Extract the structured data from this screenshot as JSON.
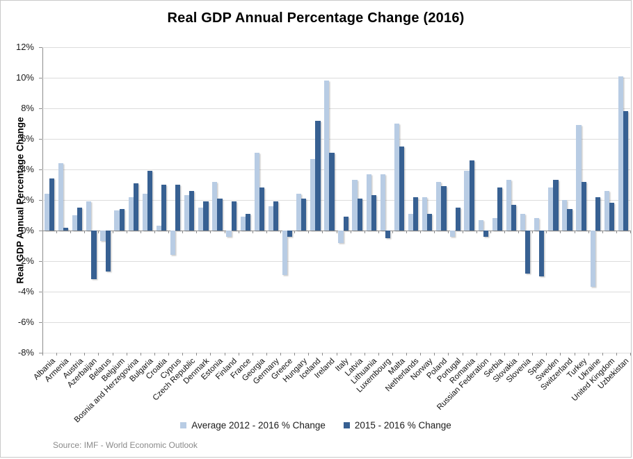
{
  "title": "Real GDP Annual Percentage Change (2016)",
  "y_axis_title": "Real GDP Annual Percentage Change",
  "source": "Source: IMF - World Economic Outlook",
  "colors": {
    "series_light": "#B8CCE4",
    "series_dark": "#376092",
    "gridline": "#DCDCDC",
    "axis": "#8C8C8C",
    "source_text": "#8A8A8A"
  },
  "legend": {
    "items": [
      {
        "label": "Average 2012 - 2016 % Change",
        "color": "#B8CCE4"
      },
      {
        "label": "2015 - 2016 % Change",
        "color": "#376092"
      }
    ]
  },
  "chart_data": {
    "type": "bar",
    "title": "Real GDP Annual Percentage Change (2016)",
    "xlabel": "",
    "ylabel": "Real GDP Annual Percentage Change",
    "ylim": [
      -8,
      12
    ],
    "ytick_step": 2,
    "y_tick_labels": [
      "12%",
      "10%",
      "8%",
      "6%",
      "4%",
      "2%",
      "0%",
      "-2%",
      "-4%",
      "-6%",
      "-8%"
    ],
    "grid": true,
    "legend_position": "bottom",
    "categories": [
      "Albania",
      "Armenia",
      "Austria",
      "Azerbaijan",
      "Belarus",
      "Belgium",
      "Bosnia and Herzegovina",
      "Bulgaria",
      "Croatia",
      "Cyprus",
      "Czech Republic",
      "Denmark",
      "Estonia",
      "Finland",
      "France",
      "Georgia",
      "Germany",
      "Greece",
      "Hungary",
      "Iceland",
      "Ireland",
      "Italy",
      "Latvia",
      "Lithuania",
      "Luxembourg",
      "Malta",
      "Netherlands",
      "Norway",
      "Poland",
      "Portugal",
      "Romania",
      "Russian Federation",
      "Serbia",
      "Slovakia",
      "Slovenia",
      "Spain",
      "Sweden",
      "Switzerland",
      "Turkey",
      "Ukraine",
      "United Kingdom",
      "Uzbekistan"
    ],
    "series": [
      {
        "name": "Average 2012 - 2016 % Change",
        "color": "#B8CCE4",
        "values": [
          2.4,
          4.4,
          1.0,
          1.9,
          -0.7,
          1.3,
          2.2,
          2.4,
          0.3,
          -1.6,
          2.3,
          1.5,
          3.2,
          -0.4,
          0.9,
          5.1,
          1.6,
          -2.9,
          2.4,
          4.7,
          9.8,
          -0.8,
          3.3,
          3.7,
          3.7,
          7.0,
          1.1,
          2.2,
          3.2,
          -0.4,
          3.9,
          0.7,
          0.8,
          3.3,
          1.1,
          0.8,
          2.8,
          2.0,
          6.9,
          -3.7,
          2.6,
          10.1
        ]
      },
      {
        "name": "2015 - 2016 % Change",
        "color": "#376092",
        "values": [
          3.4,
          0.2,
          1.5,
          -3.2,
          -2.7,
          1.4,
          3.1,
          3.9,
          3.0,
          3.0,
          2.6,
          1.9,
          2.1,
          1.9,
          1.1,
          2.8,
          1.9,
          -0.4,
          2.1,
          7.2,
          5.1,
          0.9,
          2.1,
          2.3,
          -0.5,
          5.5,
          2.2,
          1.1,
          2.9,
          1.5,
          4.6,
          -0.4,
          2.8,
          1.7,
          -2.8,
          -3.0,
          3.3,
          1.4,
          3.2,
          2.2,
          1.8,
          7.8
        ]
      }
    ]
  }
}
